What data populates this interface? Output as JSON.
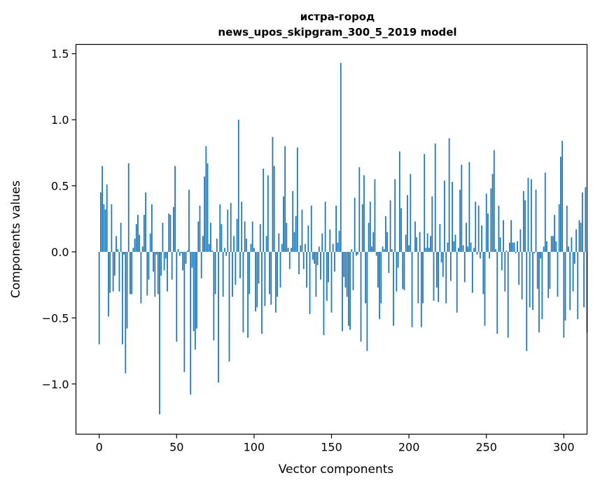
{
  "chart_data": {
    "type": "bar",
    "title": "истра-город",
    "subtitle": "news_upos_skipgram_300_5_2019 model",
    "xlabel": "Vector components",
    "ylabel": "Components values",
    "xlim": [
      -15,
      315
    ],
    "ylim": [
      -1.38,
      1.57
    ],
    "xticks": [
      0,
      50,
      100,
      150,
      200,
      250,
      300
    ],
    "xtick_labels": [
      "0",
      "50",
      "100",
      "150",
      "200",
      "250",
      "300"
    ],
    "yticks": [
      -1.0,
      -0.5,
      0.0,
      0.5,
      1.0,
      1.5
    ],
    "ytick_labels": [
      "−1.0",
      "−0.5",
      "0.0",
      "0.5",
      "1.0",
      "1.5"
    ],
    "grid": false,
    "color": "#1f77b4",
    "values": [
      -0.7,
      0.45,
      0.65,
      0.36,
      0.32,
      0.51,
      -0.49,
      -0.31,
      0.36,
      -0.3,
      -0.18,
      0.12,
      0.02,
      -0.3,
      0.22,
      -0.7,
      -0.02,
      -0.92,
      -0.58,
      0.67,
      -0.32,
      -0.32,
      0.03,
      0.1,
      0.21,
      0.28,
      0.13,
      -0.39,
      0.04,
      0.28,
      0.45,
      -0.33,
      -0.21,
      0.14,
      0.36,
      -0.15,
      -0.34,
      -0.02,
      -0.32,
      -1.23,
      -0.18,
      0.22,
      -0.14,
      -0.05,
      -0.3,
      0.29,
      0.28,
      -0.21,
      0.34,
      0.65,
      -0.68,
      0.02,
      -0.03,
      -0.01,
      -0.14,
      -0.91,
      -0.09,
      0.01,
      0.47,
      -1.08,
      -0.12,
      -0.6,
      -0.74,
      -0.58,
      0.23,
      0.35,
      -0.2,
      0.12,
      0.57,
      0.8,
      0.67,
      0.06,
      0.22,
      0.01,
      -0.67,
      -0.32,
      0.1,
      -0.99,
      0.36,
      0.21,
      -0.34,
      0.03,
      -0.03,
      0.32,
      -0.83,
      0.37,
      -0.34,
      0.12,
      -0.25,
      0.25,
      1.0,
      -0.2,
      0.38,
      -0.61,
      0.23,
      0.1,
      -0.65,
      -0.32,
      0.06,
      0.23,
      0.03,
      -0.45,
      -0.42,
      -0.24,
      0.21,
      -0.62,
      0.63,
      -0.41,
      0.12,
      0.58,
      -0.32,
      -0.4,
      0.87,
      0.65,
      -0.46,
      -0.34,
      0.14,
      -0.27,
      0.06,
      0.42,
      0.8,
      0.22,
      0.03,
      -0.13,
      0.03,
      0.46,
      0.15,
      0.27,
      0.79,
      -0.17,
      0.05,
      0.32,
      -0.13,
      0.06,
      -0.27,
      0.2,
      -0.47,
      0.35,
      -0.06,
      -0.09,
      -0.34,
      -0.1,
      0.04,
      -0.21,
      0.14,
      -0.63,
      0.38,
      -0.37,
      -0.23,
      0.17,
      -0.46,
      0.06,
      -0.15,
      0.35,
      0.07,
      0.16,
      1.43,
      -0.6,
      -0.19,
      -0.27,
      -0.34,
      -0.56,
      -0.59,
      0.02,
      -0.29,
      0.41,
      -0.03,
      -0.02,
      0.64,
      -0.68,
      0.36,
      0.58,
      -0.39,
      -0.75,
      0.22,
      0.38,
      0.04,
      0.15,
      0.55,
      -0.03,
      -0.27,
      -0.51,
      -0.39,
      0.04,
      0.02,
      0.27,
      0.15,
      -0.16,
      0.39,
      0.02,
      -0.56,
      0.55,
      -0.3,
      -0.12,
      0.76,
      0.33,
      -0.28,
      -0.29,
      0.13,
      0.43,
      0.05,
      0.59,
      -0.57,
      0.0,
      0.23,
      0.11,
      -0.39,
      0.15,
      -0.57,
      -0.39,
      0.74,
      0.03,
      0.14,
      0.03,
      0.12,
      0.42,
      -0.37,
      0.82,
      -0.27,
      -0.38,
      0.21,
      -0.08,
      -0.19,
      0.54,
      -0.39,
      0.07,
      0.86,
      -0.22,
      0.53,
      0.08,
      0.13,
      -0.46,
      0.03,
      0.47,
      0.66,
      0.05,
      -0.23,
      0.22,
      0.04,
      0.68,
      0.07,
      -0.31,
      0.03,
      0.38,
      -0.02,
      0.35,
      -0.05,
      0.2,
      -0.32,
      -0.56,
      0.44,
      0.29,
      -0.05,
      0.48,
      0.59,
      0.77,
      0.02,
      -0.62,
      0.35,
      0.11,
      -0.14,
      0.24,
      -0.3,
      0.01,
      -0.65,
      0.07,
      0.24,
      0.07,
      0.07,
      -0.01,
      0.08,
      -0.25,
      0.17,
      -0.36,
      0.46,
      0.39,
      -0.75,
      0.56,
      -0.42,
      0.55,
      -0.44,
      -0.01,
      0.47,
      -0.28,
      -0.61,
      -0.05,
      -0.51,
      0.04,
      0.6,
      0.08,
      -0.35,
      -0.28,
      0.12,
      0.12,
      0.28,
      0.08,
      -0.34,
      0.36,
      0.72,
      0.84,
      -0.65,
      -0.52,
      0.35,
      0.04,
      -0.44,
      0.11,
      -0.3,
      -0.09,
      0.17,
      -0.51,
      0.24,
      0.22,
      0.45,
      -0.42,
      0.49,
      -0.61
    ]
  }
}
